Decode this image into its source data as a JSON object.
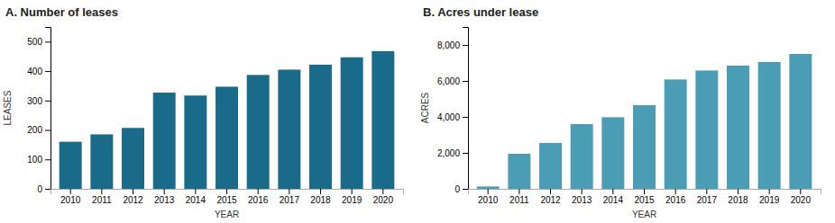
{
  "chart_data": [
    {
      "type": "bar",
      "title": "A. Number of leases",
      "x_label": "YEAR",
      "y_label": "LEASES",
      "categories": [
        "2010",
        "2011",
        "2012",
        "2013",
        "2014",
        "2015",
        "2016",
        "2017",
        "2018",
        "2019",
        "2020"
      ],
      "values": [
        160,
        185,
        207,
        327,
        317,
        347,
        387,
        405,
        422,
        447,
        468
      ],
      "color": "#1a6b8a",
      "ylim": [
        0,
        550
      ],
      "yticks": [
        0,
        100,
        200,
        300,
        400,
        500
      ],
      "grid": false
    },
    {
      "type": "bar",
      "title": "B. Acres under lease",
      "x_label": "YEAR",
      "y_label": "ACRES",
      "categories": [
        "2010",
        "2011",
        "2012",
        "2013",
        "2014",
        "2015",
        "2016",
        "2017",
        "2018",
        "2019",
        "2020"
      ],
      "values": [
        130,
        1950,
        2550,
        3600,
        3980,
        4650,
        6080,
        6580,
        6850,
        7050,
        7500
      ],
      "color": "#4a9db5",
      "ylim": [
        0,
        9000
      ],
      "yticks": [
        0,
        {
          "value": 2000,
          "label": "2,000"
        },
        {
          "value": 4000,
          "label": "4,000"
        },
        {
          "value": 6000,
          "label": "6,000"
        },
        {
          "value": 8000,
          "label": "8,000"
        }
      ],
      "grid": false
    }
  ]
}
